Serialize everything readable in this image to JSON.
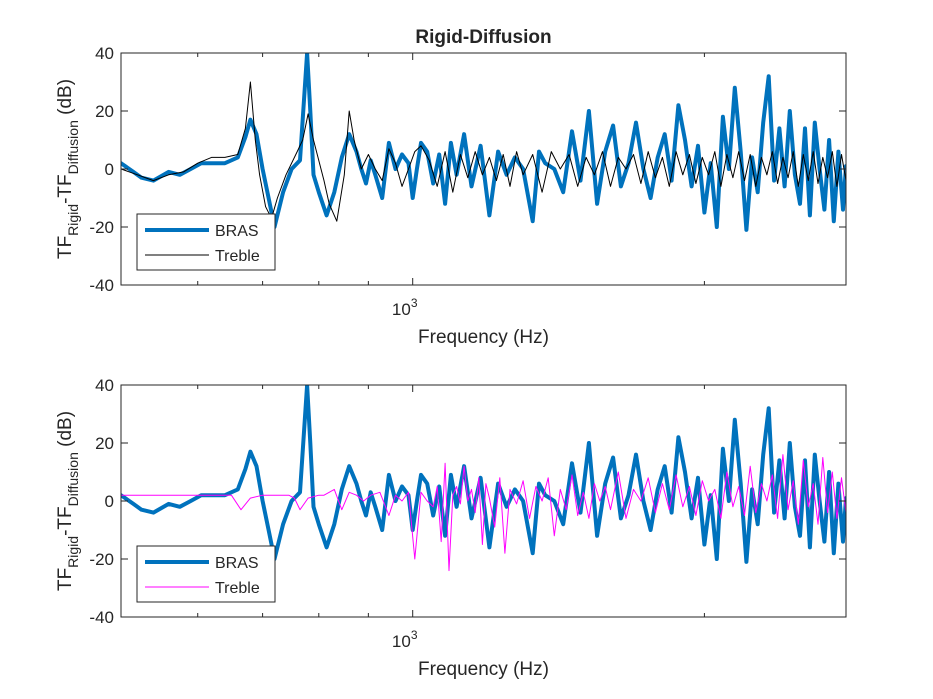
{
  "chart_data": [
    {
      "type": "line",
      "title": "Rigid-Diffusion",
      "xlabel": "Frequency (Hz)",
      "ylabel": {
        "base1": "TF",
        "sub1": "Rigid",
        "mid": "-TF",
        "sub2": "Diffusion",
        "unit": " (dB)"
      },
      "xscale": "log",
      "xlim": [
        500,
        2800
      ],
      "ylim": [
        -40,
        40
      ],
      "yticks": [
        40,
        20,
        0,
        -20,
        -40
      ],
      "ytick_labels": [
        "40",
        "20",
        "0",
        "-20",
        "-40"
      ],
      "xtick_label": {
        "base": "10",
        "exp": "3",
        "value": 1000
      },
      "legend": {
        "placement": "bottom-left",
        "entries": [
          "BRAS",
          "Treble"
        ]
      },
      "series": [
        {
          "name": "BRAS",
          "color": "#0072BD",
          "x": [
            500,
            515,
            525,
            540,
            560,
            575,
            590,
            605,
            620,
            640,
            660,
            672,
            680,
            690,
            700,
            710,
            720,
            735,
            750,
            765,
            778,
            784,
            790,
            800,
            815,
            830,
            845,
            860,
            875,
            885,
            895,
            905,
            915,
            930,
            945,
            960,
            975,
            990,
            1000,
            1010,
            1020,
            1035,
            1050,
            1065,
            1080,
            1095,
            1110,
            1130,
            1150,
            1175,
            1200,
            1225,
            1250,
            1275,
            1300,
            1330,
            1350,
            1370,
            1400,
            1430,
            1460,
            1490,
            1520,
            1550,
            1580,
            1610,
            1640,
            1670,
            1700,
            1730,
            1760,
            1790,
            1820,
            1850,
            1880,
            1910,
            1940,
            1970,
            2000,
            2030,
            2060,
            2090,
            2120,
            2150,
            2180,
            2210,
            2240,
            2270,
            2300,
            2330,
            2360,
            2390,
            2420,
            2450,
            2480,
            2510,
            2540,
            2570,
            2600,
            2630,
            2660,
            2690,
            2720,
            2750,
            2780,
            2800
          ],
          "y": [
            2,
            -1,
            -3,
            -4,
            -1,
            -2,
            0,
            2,
            2,
            2,
            4,
            11,
            17,
            12,
            0,
            -10,
            -20,
            -8,
            0,
            3,
            40,
            20,
            -2,
            -8,
            -16,
            -8,
            4,
            12,
            6,
            0,
            -5,
            3,
            -2,
            -10,
            9,
            0,
            5,
            2,
            -10,
            0,
            9,
            6,
            -5,
            5,
            -12,
            9,
            -2,
            12,
            -6,
            8,
            -16,
            6,
            -2,
            4,
            0,
            -18,
            6,
            2,
            0,
            -8,
            13,
            -4,
            20,
            -12,
            6,
            15,
            -6,
            2,
            16,
            0,
            -10,
            4,
            12,
            -4,
            22,
            10,
            -6,
            8,
            -15,
            2,
            -20,
            18,
            0,
            28,
            6,
            -21,
            4,
            -8,
            16,
            32,
            -4,
            14,
            -6,
            20,
            -2,
            -12,
            14,
            -16,
            16,
            0,
            -14,
            10,
            -18,
            6,
            -14,
            1
          ],
          "width": 4
        },
        {
          "name": "Treble",
          "color": "#000000",
          "x": [
            500,
            520,
            540,
            560,
            580,
            600,
            620,
            640,
            660,
            672,
            680,
            688,
            695,
            705,
            715,
            725,
            740,
            760,
            770,
            780,
            790,
            810,
            820,
            835,
            850,
            860,
            870,
            885,
            900,
            915,
            930,
            945,
            960,
            975,
            990,
            1005,
            1020,
            1040,
            1060,
            1080,
            1100,
            1120,
            1140,
            1160,
            1180,
            1200,
            1220,
            1240,
            1260,
            1280,
            1300,
            1330,
            1360,
            1390,
            1420,
            1450,
            1480,
            1510,
            1540,
            1570,
            1600,
            1630,
            1660,
            1690,
            1720,
            1750,
            1780,
            1810,
            1840,
            1870,
            1900,
            1930,
            1960,
            1990,
            2020,
            2050,
            2080,
            2110,
            2140,
            2170,
            2200,
            2230,
            2260,
            2290,
            2320,
            2350,
            2380,
            2410,
            2440,
            2470,
            2500,
            2530,
            2560,
            2590,
            2620,
            2650,
            2680,
            2710,
            2740,
            2770,
            2800
          ],
          "y": [
            0,
            -2,
            -4,
            -2,
            -1,
            2,
            4,
            4,
            5,
            14,
            30,
            10,
            -2,
            -13,
            -17,
            -10,
            -2,
            6,
            10,
            19,
            10,
            -4,
            -12,
            -18,
            -2,
            20,
            10,
            0,
            5,
            0,
            -4,
            7,
            2,
            -6,
            0,
            6,
            8,
            3,
            -6,
            6,
            -8,
            5,
            -3,
            6,
            -2,
            4,
            -4,
            5,
            -6,
            6,
            -2,
            5,
            -8,
            6,
            0,
            5,
            -6,
            4,
            -2,
            6,
            -6,
            4,
            0,
            5,
            -5,
            6,
            -3,
            4,
            -6,
            6,
            -2,
            5,
            -5,
            4,
            -2,
            6,
            -6,
            5,
            -3,
            6,
            -4,
            5,
            -6,
            4,
            -2,
            6,
            -5,
            4,
            -3,
            6,
            -6,
            5,
            -4,
            6,
            -5,
            4,
            -3,
            6,
            -6,
            5,
            -4
          ],
          "width": 1
        }
      ]
    },
    {
      "type": "line",
      "title": "",
      "xlabel": "Frequency (Hz)",
      "ylabel": {
        "base1": "TF",
        "sub1": "Rigid",
        "mid": "-TF",
        "sub2": "Diffusion",
        "unit": " (dB)"
      },
      "xscale": "log",
      "xlim": [
        500,
        2800
      ],
      "ylim": [
        -40,
        40
      ],
      "yticks": [
        40,
        20,
        0,
        -20,
        -40
      ],
      "ytick_labels": [
        "40",
        "20",
        "0",
        "-20",
        "-40"
      ],
      "xtick_label": {
        "base": "10",
        "exp": "3",
        "value": 1000
      },
      "legend": {
        "placement": "bottom-left",
        "entries": [
          "BRAS",
          "Treble"
        ]
      },
      "series": [
        {
          "name": "BRAS",
          "color": "#0072BD",
          "x": [
            500,
            515,
            525,
            540,
            560,
            575,
            590,
            605,
            620,
            640,
            660,
            672,
            680,
            690,
            700,
            710,
            720,
            735,
            750,
            765,
            778,
            784,
            790,
            800,
            815,
            830,
            845,
            860,
            875,
            885,
            895,
            905,
            915,
            930,
            945,
            960,
            975,
            990,
            1000,
            1010,
            1020,
            1035,
            1050,
            1065,
            1080,
            1095,
            1110,
            1130,
            1150,
            1175,
            1200,
            1225,
            1250,
            1275,
            1300,
            1330,
            1350,
            1370,
            1400,
            1430,
            1460,
            1490,
            1520,
            1550,
            1580,
            1610,
            1640,
            1670,
            1700,
            1730,
            1760,
            1790,
            1820,
            1850,
            1880,
            1910,
            1940,
            1970,
            2000,
            2030,
            2060,
            2090,
            2120,
            2150,
            2180,
            2210,
            2240,
            2270,
            2300,
            2330,
            2360,
            2390,
            2420,
            2450,
            2480,
            2510,
            2540,
            2570,
            2600,
            2630,
            2660,
            2690,
            2720,
            2750,
            2780,
            2800
          ],
          "y": [
            2,
            -1,
            -3,
            -4,
            -1,
            -2,
            0,
            2,
            2,
            2,
            4,
            11,
            17,
            12,
            0,
            -10,
            -20,
            -8,
            0,
            3,
            40,
            20,
            -2,
            -8,
            -16,
            -8,
            4,
            12,
            6,
            0,
            -5,
            3,
            -2,
            -10,
            9,
            0,
            5,
            2,
            -10,
            0,
            9,
            6,
            -5,
            5,
            -12,
            9,
            -2,
            12,
            -6,
            8,
            -16,
            6,
            -2,
            4,
            0,
            -18,
            6,
            2,
            0,
            -8,
            13,
            -4,
            20,
            -12,
            6,
            15,
            -6,
            2,
            16,
            0,
            -10,
            4,
            12,
            -4,
            22,
            10,
            -6,
            8,
            -15,
            2,
            -20,
            18,
            0,
            28,
            6,
            -21,
            4,
            -8,
            16,
            32,
            -4,
            14,
            -6,
            20,
            -2,
            -12,
            14,
            -16,
            16,
            0,
            -14,
            10,
            -18,
            6,
            -14,
            1
          ],
          "width": 4
        },
        {
          "name": "Treble",
          "color": "#FF00FF",
          "x": [
            500,
            540,
            580,
            620,
            650,
            665,
            680,
            700,
            720,
            735,
            745,
            755,
            765,
            780,
            800,
            810,
            820,
            830,
            845,
            860,
            875,
            890,
            905,
            925,
            945,
            960,
            975,
            990,
            1005,
            1020,
            1035,
            1050,
            1060,
            1070,
            1080,
            1090,
            1100,
            1110,
            1120,
            1130,
            1140,
            1150,
            1160,
            1170,
            1180,
            1190,
            1200,
            1215,
            1230,
            1245,
            1260,
            1280,
            1300,
            1320,
            1340,
            1360,
            1380,
            1400,
            1420,
            1440,
            1460,
            1480,
            1500,
            1520,
            1540,
            1560,
            1580,
            1600,
            1630,
            1660,
            1690,
            1720,
            1750,
            1780,
            1810,
            1840,
            1870,
            1900,
            1930,
            1960,
            1990,
            2020,
            2050,
            2080,
            2110,
            2140,
            2170,
            2200,
            2230,
            2260,
            2290,
            2320,
            2350,
            2380,
            2410,
            2440,
            2470,
            2500,
            2530,
            2560,
            2590,
            2620,
            2650,
            2680,
            2710,
            2740,
            2770,
            2800
          ],
          "y": [
            2,
            2,
            2,
            2,
            2,
            -3,
            1,
            2,
            2,
            2,
            2,
            1,
            -3,
            1,
            2,
            2,
            3,
            4,
            -3,
            3,
            2,
            0,
            2,
            3,
            -5,
            2,
            0,
            3,
            -20,
            3,
            0,
            -2,
            5,
            -14,
            13,
            -24,
            2,
            5,
            -1,
            12,
            0,
            4,
            -4,
            8,
            -15,
            6,
            1,
            -9,
            8,
            -18,
            4,
            -1,
            7,
            -6,
            5,
            0,
            8,
            -12,
            4,
            -3,
            9,
            -5,
            3,
            -6,
            6,
            0,
            5,
            -3,
            10,
            -6,
            4,
            0,
            8,
            -4,
            6,
            -3,
            9,
            -2,
            5,
            -5,
            7,
            0,
            4,
            -6,
            10,
            -2,
            5,
            -5,
            12,
            -4,
            6,
            0,
            9,
            -6,
            16,
            -3,
            7,
            -8,
            14,
            -2,
            6,
            -8,
            15,
            -4,
            10,
            -6,
            8,
            -4
          ]
        }
      ]
    }
  ]
}
